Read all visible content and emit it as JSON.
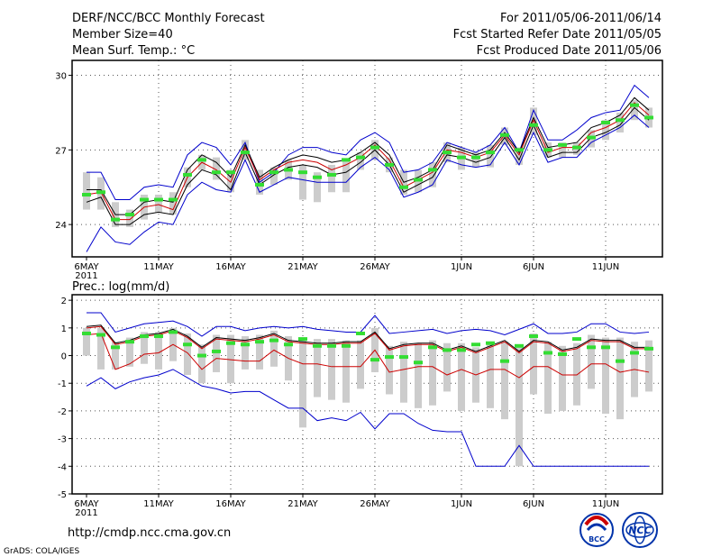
{
  "header": {
    "title": "DERF/NCC/BCC Monthly Forecast",
    "member_size": "Member Size=40",
    "variable": "Mean Surf. Temp.: °C",
    "period": "For 2011/05/06-2011/06/14",
    "fcst_started": "Fcst Started Refer Date 2011/05/05",
    "fcst_produced": "Fcst Produced Date 2011/05/06"
  },
  "footer": {
    "url": "http://cmdp.ncc.cma.gov.cn",
    "credit": "GrADS: COLA/IGES",
    "logo_bcc": "BCC",
    "logo_ncc": "NCC"
  },
  "colors": {
    "envelope": "#0000cc",
    "ensemble_mean": "#000000",
    "median": "#cc0000",
    "observation": "#33dd33",
    "bars": "#cccccc",
    "grid": "#555555"
  },
  "chart_data": [
    {
      "type": "line",
      "title": "Mean Surf. Temp.: °C",
      "x_labels": [
        "6MAY",
        "11MAY",
        "16MAY",
        "21MAY",
        "26MAY",
        "1JUN",
        "6JUN",
        "11JUN"
      ],
      "x_label_day_index": [
        0,
        5,
        10,
        15,
        20,
        26,
        31,
        36
      ],
      "year_label": "2011",
      "y_ticks": [
        24,
        27,
        30
      ],
      "ylim": [
        22.7,
        30.6
      ],
      "series": [
        {
          "name": "max",
          "values": [
            26.1,
            26.1,
            25.0,
            25.0,
            25.5,
            25.6,
            25.5,
            26.8,
            27.3,
            27.1,
            26.4,
            27.3,
            25.7,
            26.1,
            26.8,
            27.1,
            27.1,
            26.9,
            26.8,
            27.4,
            27.7,
            27.3,
            26.1,
            26.2,
            26.5,
            27.3,
            27.1,
            26.9,
            27.2,
            27.9,
            26.9,
            28.6,
            27.4,
            27.4,
            27.8,
            28.3,
            28.5,
            28.6,
            29.6,
            29.1
          ]
        },
        {
          "name": "upper",
          "values": [
            25.4,
            25.4,
            24.4,
            24.4,
            24.9,
            25.0,
            24.9,
            26.2,
            26.8,
            26.5,
            25.9,
            27.2,
            25.9,
            26.3,
            26.6,
            26.8,
            26.7,
            26.5,
            26.6,
            26.9,
            27.3,
            26.8,
            25.7,
            25.9,
            26.2,
            27.2,
            27.0,
            26.8,
            27.0,
            27.7,
            26.9,
            28.3,
            27.1,
            27.2,
            27.3,
            27.9,
            28.1,
            28.4,
            29.1,
            28.6
          ]
        },
        {
          "name": "mean",
          "values": [
            25.2,
            25.3,
            24.2,
            24.2,
            24.7,
            24.8,
            24.6,
            25.9,
            26.5,
            26.2,
            25.7,
            27.1,
            25.8,
            26.2,
            26.5,
            26.6,
            26.5,
            26.2,
            26.4,
            26.7,
            27.2,
            26.6,
            25.5,
            25.8,
            26.1,
            27.0,
            26.9,
            26.7,
            26.9,
            27.6,
            26.8,
            28.2,
            26.9,
            27.1,
            27.1,
            27.7,
            27.9,
            28.2,
            28.9,
            28.4
          ]
        },
        {
          "name": "lower",
          "values": [
            24.9,
            25.1,
            24.0,
            24.0,
            24.4,
            24.5,
            24.4,
            25.6,
            26.2,
            26.0,
            25.4,
            26.9,
            25.6,
            26.0,
            26.3,
            26.4,
            26.3,
            26.0,
            26.1,
            26.5,
            27.0,
            26.4,
            25.3,
            25.6,
            25.9,
            26.8,
            26.7,
            26.5,
            26.7,
            27.5,
            26.6,
            28.0,
            26.7,
            26.9,
            26.9,
            27.5,
            27.7,
            28.0,
            28.7,
            28.2
          ]
        },
        {
          "name": "min",
          "values": [
            22.9,
            23.9,
            23.3,
            23.2,
            23.7,
            24.1,
            24.0,
            25.2,
            25.7,
            25.4,
            25.3,
            26.6,
            25.3,
            25.6,
            25.9,
            25.8,
            25.7,
            25.7,
            25.7,
            26.3,
            26.7,
            26.2,
            25.1,
            25.3,
            25.6,
            26.6,
            26.4,
            26.3,
            26.4,
            27.3,
            26.4,
            27.7,
            26.5,
            26.7,
            26.7,
            27.3,
            27.6,
            27.9,
            28.4,
            27.9
          ]
        },
        {
          "name": "observation",
          "values": [
            25.2,
            25.3,
            24.2,
            24.4,
            25.0,
            25.0,
            25.0,
            26.0,
            26.6,
            26.1,
            26.1,
            26.9,
            25.6,
            26.1,
            26.2,
            26.1,
            25.9,
            26.0,
            26.6,
            26.7,
            27.1,
            26.4,
            25.5,
            25.8,
            26.2,
            26.9,
            26.7,
            26.7,
            26.9,
            27.6,
            27.0,
            28.0,
            27.0,
            27.2,
            27.1,
            27.5,
            28.1,
            28.2,
            28.8,
            28.3
          ]
        }
      ],
      "bars": [
        [
          24.6,
          26.1
        ],
        [
          24.6,
          25.9
        ],
        [
          23.9,
          24.9
        ],
        [
          23.9,
          24.6
        ],
        [
          24.2,
          25.2
        ],
        [
          24.5,
          25.2
        ],
        [
          24.4,
          25.3
        ],
        [
          25.5,
          26.3
        ],
        [
          26.2,
          26.8
        ],
        [
          25.8,
          26.7
        ],
        [
          25.3,
          26.2
        ],
        [
          26.6,
          27.4
        ],
        [
          25.2,
          26.2
        ],
        [
          25.6,
          26.3
        ],
        [
          25.8,
          26.6
        ],
        [
          25.0,
          26.4
        ],
        [
          24.9,
          26.1
        ],
        [
          25.3,
          26.4
        ],
        [
          25.3,
          26.6
        ],
        [
          26.2,
          26.9
        ],
        [
          26.6,
          27.4
        ],
        [
          26.1,
          26.7
        ],
        [
          25.2,
          26.2
        ],
        [
          25.3,
          26.2
        ],
        [
          25.5,
          26.5
        ],
        [
          26.5,
          27.3
        ],
        [
          26.2,
          27.1
        ],
        [
          26.3,
          26.9
        ],
        [
          26.3,
          27.2
        ],
        [
          27.2,
          27.9
        ],
        [
          26.4,
          27.1
        ],
        [
          27.6,
          28.7
        ],
        [
          26.7,
          27.3
        ],
        [
          26.7,
          27.3
        ],
        [
          26.8,
          27.3
        ],
        [
          27.1,
          27.8
        ],
        [
          27.4,
          28.2
        ],
        [
          27.7,
          28.5
        ],
        [
          28.2,
          29.0
        ],
        [
          27.9,
          28.7
        ]
      ]
    },
    {
      "type": "line",
      "title": "Prec.: log(mm/d)",
      "x_labels": [
        "6MAY",
        "11MAY",
        "16MAY",
        "21MAY",
        "26MAY",
        "1JUN",
        "6JUN",
        "11JUN"
      ],
      "x_label_day_index": [
        0,
        5,
        10,
        15,
        20,
        26,
        31,
        36
      ],
      "year_label": "2011",
      "y_ticks": [
        -5,
        -4,
        -3,
        -2,
        -1,
        0,
        1,
        2
      ],
      "ylim": [
        -5,
        2.2
      ],
      "series": [
        {
          "name": "max",
          "values": [
            1.55,
            1.55,
            0.85,
            1.0,
            1.15,
            1.2,
            1.25,
            1.05,
            0.7,
            1.05,
            1.05,
            0.9,
            1.0,
            1.05,
            1.0,
            1.05,
            0.95,
            0.9,
            0.85,
            0.85,
            1.45,
            0.8,
            0.85,
            0.9,
            0.95,
            0.8,
            0.9,
            0.95,
            0.9,
            0.75,
            0.95,
            1.15,
            0.8,
            0.8,
            0.85,
            1.15,
            1.15,
            0.85,
            0.8,
            0.85
          ]
        },
        {
          "name": "upper",
          "values": [
            1.05,
            1.1,
            0.45,
            0.55,
            0.75,
            0.8,
            0.95,
            0.7,
            0.3,
            0.65,
            0.6,
            0.55,
            0.65,
            0.8,
            0.55,
            0.5,
            0.45,
            0.45,
            0.5,
            0.5,
            0.85,
            0.25,
            0.4,
            0.45,
            0.45,
            0.2,
            0.35,
            0.15,
            0.35,
            0.55,
            0.15,
            0.55,
            0.5,
            0.2,
            0.3,
            0.6,
            0.55,
            0.55,
            0.3,
            0.3
          ]
        },
        {
          "name": "mean",
          "values": [
            1.0,
            1.05,
            0.4,
            0.5,
            0.7,
            0.75,
            0.9,
            0.65,
            0.25,
            0.6,
            0.55,
            0.5,
            0.6,
            0.75,
            0.5,
            0.45,
            0.4,
            0.4,
            0.45,
            0.45,
            0.8,
            0.2,
            0.35,
            0.4,
            0.4,
            0.15,
            0.3,
            0.1,
            0.3,
            0.5,
            0.1,
            0.5,
            0.45,
            0.15,
            0.25,
            0.55,
            0.5,
            0.5,
            0.25,
            0.25
          ]
        },
        {
          "name": "median",
          "values": [
            0.75,
            0.8,
            -0.5,
            -0.3,
            0.05,
            0.1,
            0.4,
            0.1,
            -0.5,
            -0.1,
            -0.15,
            -0.2,
            -0.2,
            0.2,
            -0.1,
            -0.3,
            -0.3,
            -0.4,
            -0.4,
            -0.4,
            0.2,
            -0.6,
            -0.5,
            -0.4,
            -0.4,
            -0.7,
            -0.5,
            -0.7,
            -0.5,
            -0.5,
            -0.8,
            -0.4,
            -0.4,
            -0.7,
            -0.7,
            -0.3,
            -0.3,
            -0.6,
            -0.5,
            -0.6
          ]
        },
        {
          "name": "min",
          "values": [
            -1.1,
            -0.8,
            -1.2,
            -0.95,
            -0.8,
            -0.7,
            -0.5,
            -0.8,
            -1.1,
            -1.2,
            -1.35,
            -1.3,
            -1.3,
            -1.6,
            -1.9,
            -1.9,
            -2.35,
            -2.25,
            -2.35,
            -2.05,
            -2.65,
            -2.1,
            -2.1,
            -2.45,
            -2.7,
            -2.75,
            -2.75,
            -4.0,
            -4.0,
            -4.0,
            -3.25,
            -4.0,
            -4.0,
            -4.0,
            -4.0,
            -4.0,
            -4.0,
            -4.0,
            -4.0,
            -4.0
          ]
        },
        {
          "name": "observation",
          "values": [
            0.8,
            0.75,
            0.3,
            0.5,
            0.7,
            0.7,
            0.85,
            0.4,
            0.0,
            0.15,
            0.45,
            0.4,
            0.5,
            0.55,
            0.4,
            0.6,
            0.35,
            0.35,
            0.35,
            0.8,
            -0.15,
            -0.05,
            -0.05,
            -0.25,
            0.3,
            0.2,
            0.2,
            0.4,
            0.45,
            -0.2,
            0.35,
            0.7,
            0.1,
            0.05,
            0.6,
            0.3,
            0.3,
            -0.2,
            0.1,
            0.25
          ]
        }
      ],
      "bars": [
        [
          0.0,
          1.0
        ],
        [
          -0.5,
          1.0
        ],
        [
          -0.5,
          0.5
        ],
        [
          -0.4,
          0.65
        ],
        [
          -0.3,
          0.85
        ],
        [
          -0.5,
          0.85
        ],
        [
          -0.2,
          1.0
        ],
        [
          -0.7,
          0.8
        ],
        [
          -1.0,
          0.4
        ],
        [
          -0.6,
          0.75
        ],
        [
          -1.0,
          0.75
        ],
        [
          -0.5,
          0.7
        ],
        [
          -0.5,
          0.75
        ],
        [
          -0.4,
          0.9
        ],
        [
          -0.9,
          0.7
        ],
        [
          -2.6,
          0.6
        ],
        [
          -1.5,
          0.6
        ],
        [
          -1.6,
          0.6
        ],
        [
          -1.7,
          0.55
        ],
        [
          -1.2,
          0.55
        ],
        [
          -0.6,
          1.0
        ],
        [
          -1.4,
          0.35
        ],
        [
          -1.7,
          0.5
        ],
        [
          -1.9,
          0.45
        ],
        [
          -1.8,
          0.55
        ],
        [
          -1.3,
          0.45
        ],
        [
          -2.0,
          0.45
        ],
        [
          -1.7,
          0.3
        ],
        [
          -1.9,
          0.45
        ],
        [
          -2.3,
          0.5
        ],
        [
          -4.0,
          0.3
        ],
        [
          -1.4,
          0.8
        ],
        [
          -2.1,
          0.5
        ],
        [
          -2.0,
          0.35
        ],
        [
          -1.8,
          0.45
        ],
        [
          -1.2,
          0.75
        ],
        [
          -2.1,
          0.65
        ],
        [
          -2.3,
          0.65
        ],
        [
          -1.5,
          0.5
        ],
        [
          -1.3,
          0.55
        ]
      ]
    }
  ]
}
